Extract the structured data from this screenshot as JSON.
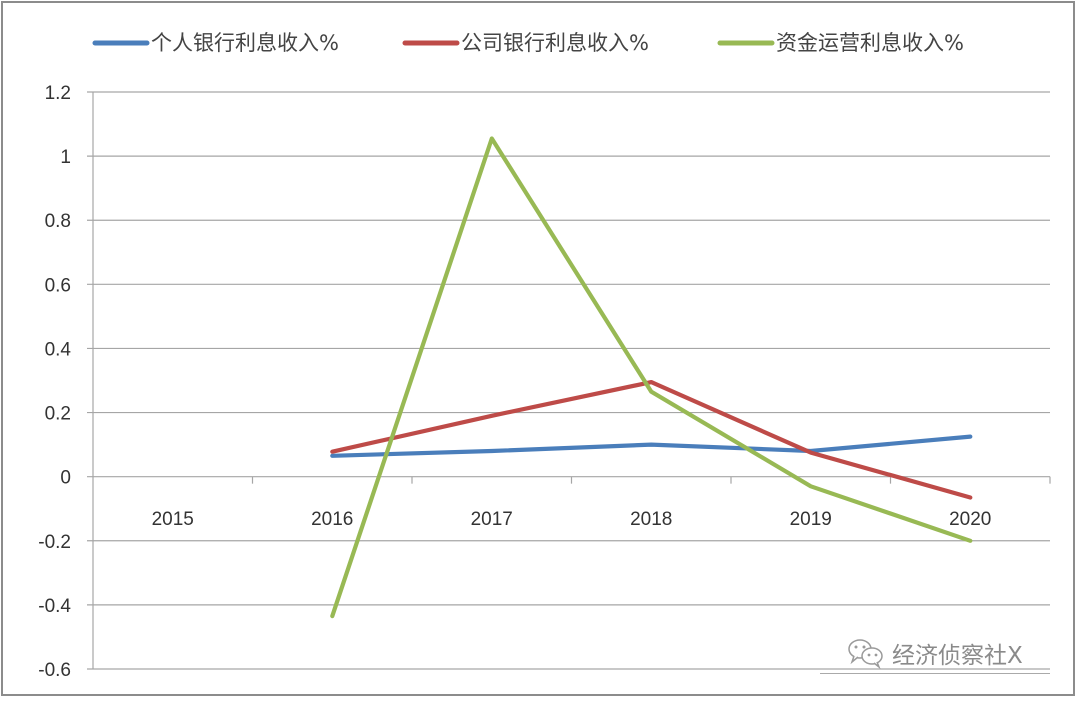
{
  "chart_data": {
    "type": "line",
    "title": "",
    "xlabel": "",
    "ylabel": "",
    "categories": [
      "2015",
      "2016",
      "2017",
      "2018",
      "2019",
      "2020"
    ],
    "ylim": [
      -0.6,
      1.2
    ],
    "yticks": [
      "1.2",
      "1",
      "0.8",
      "0.6",
      "0.4",
      "0.2",
      "0",
      "-0.2",
      "-0.4",
      "-0.6"
    ],
    "grid": true,
    "legend_position": "top",
    "series": [
      {
        "name": "个人银行利息收入%",
        "color": "#4a7ebb",
        "values": [
          null,
          0.065,
          0.08,
          0.1,
          0.08,
          0.125
        ]
      },
      {
        "name": "公司银行利息收入%",
        "color": "#be4b48",
        "values": [
          null,
          0.078,
          0.19,
          0.295,
          0.075,
          -0.065
        ]
      },
      {
        "name": "资金运营利息收入%",
        "color": "#98b954",
        "values": [
          null,
          -0.435,
          1.055,
          0.265,
          -0.03,
          -0.2
        ]
      }
    ]
  },
  "legend": {
    "items": [
      {
        "label": "个人银行利息收入%",
        "color": "#4a7ebb"
      },
      {
        "label": "公司银行利息收入%",
        "color": "#be4b48"
      },
      {
        "label": "资金运营利息收入%",
        "color": "#98b954"
      }
    ]
  },
  "watermark": {
    "icon": "wechat-icon",
    "text": "经济侦察社X"
  },
  "colors": {
    "gridline": "#a6a6a6",
    "frame": "#8c8c8c",
    "text": "#333333"
  }
}
